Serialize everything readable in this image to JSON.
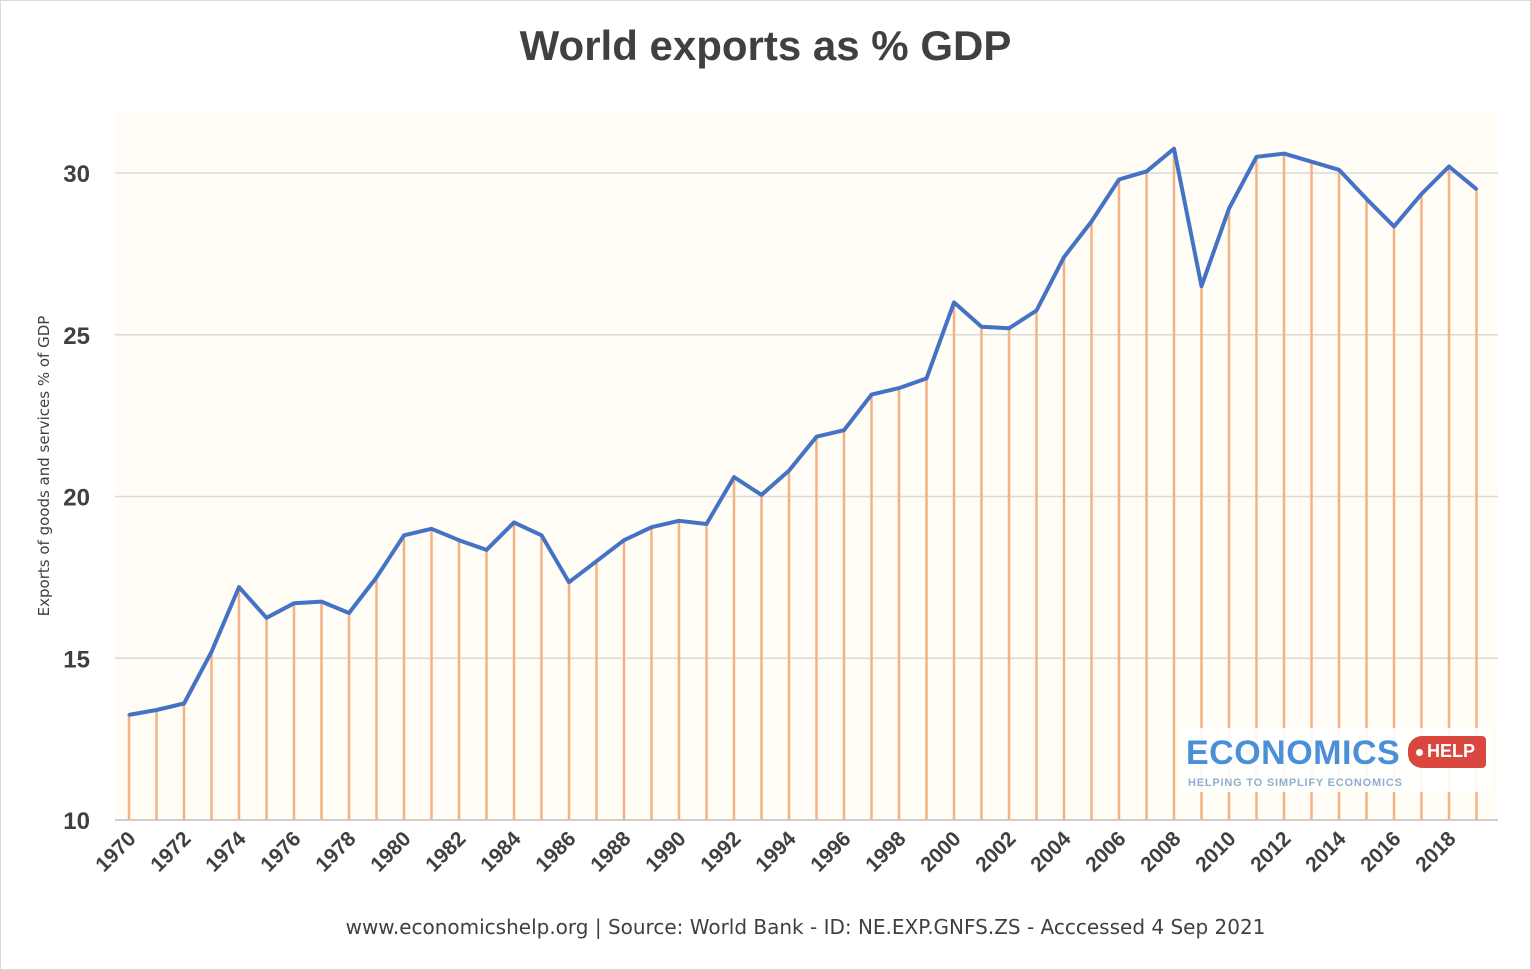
{
  "chart_data": {
    "type": "line",
    "title": "World exports as % GDP",
    "ylabel": "Exports of goods and services % of GDP",
    "xlabel": "",
    "ylim": [
      10,
      32
    ],
    "yticks": [
      10,
      15,
      20,
      25,
      30
    ],
    "grid": true,
    "legend": "none",
    "drop_lines": true,
    "colors": {
      "line": "#4472c4",
      "drop": "#f4b183",
      "grid": "#d9d9d9",
      "plot_bg": "#fffdf5"
    },
    "x": [
      1970,
      1971,
      1972,
      1973,
      1974,
      1975,
      1976,
      1977,
      1978,
      1979,
      1980,
      1981,
      1982,
      1983,
      1984,
      1985,
      1986,
      1987,
      1988,
      1989,
      1990,
      1991,
      1992,
      1993,
      1994,
      1995,
      1996,
      1997,
      1998,
      1999,
      2000,
      2001,
      2002,
      2003,
      2004,
      2005,
      2006,
      2007,
      2008,
      2009,
      2010,
      2011,
      2012,
      2013,
      2014,
      2015,
      2016,
      2017,
      2018,
      2019
    ],
    "xtick_labels": [
      "1970",
      "1972",
      "1974",
      "1976",
      "1978",
      "1980",
      "1982",
      "1984",
      "1986",
      "1988",
      "1990",
      "1992",
      "1994",
      "1996",
      "1998",
      "2000",
      "2002",
      "2004",
      "2006",
      "2008",
      "2010",
      "2012",
      "2014",
      "2016",
      "2018"
    ],
    "series": [
      {
        "values": [
          13.25,
          13.4,
          13.6,
          15.2,
          17.2,
          16.25,
          16.7,
          16.75,
          16.4,
          17.5,
          18.8,
          19.0,
          18.65,
          18.35,
          19.2,
          18.8,
          17.35,
          18.0,
          18.65,
          19.05,
          19.25,
          19.15,
          20.6,
          20.05,
          20.8,
          21.85,
          22.05,
          23.15,
          23.35,
          23.65,
          26.0,
          25.25,
          25.2,
          25.75,
          27.4,
          28.5,
          29.8,
          30.05,
          30.75,
          26.5,
          28.9,
          30.5,
          30.6,
          30.35,
          30.1,
          29.2,
          28.35,
          29.35,
          30.2,
          29.5
        ]
      }
    ]
  },
  "source": "www.economicshelp.org  | Source: World Bank - ID: NE.EXP.GNFS.ZS - Acccessed 4 Sep 2021",
  "logo": {
    "word": "ECONOMICS",
    "tag": "HELP",
    "tagline": "HELPING TO SIMPLIFY ECONOMICS"
  }
}
